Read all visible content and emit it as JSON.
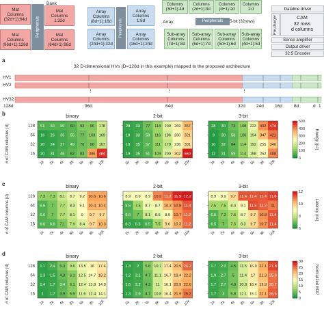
{
  "arch": {
    "bank_label": "Bank",
    "periph_label": "Peripherals",
    "mat1": "Mat\nColumns\n(32d+1):64d",
    "mat2": "Mat\nColumns\n1:32d",
    "mat3": "Mat\nColumns\n(96d+1):128d",
    "mat4": "Mat\nColumns\n(64d+1):96d",
    "arr1": "Array\nColumns\n(8d+1):16d",
    "arr2": "Array\nColumns\n1:8d",
    "arr3": "Array\nColumns\n(24d+1):32d",
    "arr4": "Array\nColumns\n(16d+1):24d",
    "sub1": "Columns\n(3d+1):4d",
    "sub2": "Columns\n(2d+1):3d",
    "sub3": "Columns\n(d+1):2d",
    "sub4": "Columns\n1:d",
    "array_word": "Array",
    "periph2": "Peripherals",
    "fivebit": "5-bit (32rows)",
    "sa_label": "Sub-array",
    "sa1": "Sub-array\nColumns\n(7d+1):8d",
    "sa2": "Sub-array\nColumns\n(6d+1):7d",
    "sa3": "Sub-array\nColumns\n(5d+1):6d",
    "sa4": "Sub-array\nColumns\n(4d+1):5d",
    "datadriver": "Dataline driver",
    "precharger": "Pre-charger",
    "cam": "CAM\n32 rows\nd columns",
    "senseamp": "Sense amplifier",
    "outdriver": "Output driver",
    "encoder": "32:5 Encoder"
  },
  "panel_a": {
    "letter": "a",
    "title": "32 D-dimensional HVs (D=128d in this example) mapped to the proposed architecture",
    "rows": [
      "HV1",
      "HV2",
      "HV32"
    ],
    "ticks": [
      "128d",
      "96d",
      "64d",
      "32d",
      "24d",
      "16d",
      "8d",
      "d",
      "1"
    ]
  },
  "chart_data": [
    {
      "letter": "b",
      "metric": "Energy",
      "unit": "Energy (pJ)",
      "type": "heatmap",
      "cbar": {
        "min": 0,
        "max": 500,
        "ticks": [
          "0",
          "100",
          "200",
          "300",
          "400",
          "500"
        ]
      },
      "ylabel": "# of CAM columns (d)",
      "rows": [
        "128",
        "64",
        "32",
        "16"
      ],
      "cols": [
        "1k",
        "2k",
        "4k",
        "8k",
        "6k",
        "8k",
        "10k"
      ],
      "maps": [
        {
          "title": "binary",
          "values": [
            [
              51,
              50,
              50,
              60,
              93,
              96,
              178
            ],
            [
              16,
              26,
              36,
              55,
              77,
              103,
              169
            ],
            [
              20,
              24,
              37,
              49,
              76,
              90,
              167
            ],
            [
              20,
              31,
              46,
              62,
              83,
              386,
              484
            ]
          ]
        },
        {
          "title": "2-bit",
          "values": [
            [
              28,
              33,
              77,
              118,
              209,
              269,
              357
            ],
            [
              18,
              33,
              58,
              116,
              186,
              260,
              321
            ],
            [
              19,
              35,
              57,
              111,
              170,
              236,
              301
            ],
            [
              19,
              35,
              51,
              109,
              200,
              302,
              560
            ]
          ]
        },
        {
          "title": "3-bit",
          "values": [
            [
              28,
              30,
              73,
              108,
              223,
              402,
              474
            ],
            [
              9,
              30,
              58,
              106,
              194,
              347,
              421
            ],
            [
              10,
              32,
              64,
              114,
              192,
              255,
              340
            ],
            [
              12,
              31,
              59,
              114,
              198,
              252,
              408
            ]
          ]
        }
      ]
    },
    {
      "letter": "c",
      "metric": "Latency",
      "unit": "Latency (ns)",
      "type": "heatmap",
      "cbar": {
        "min": 6,
        "max": 12,
        "ticks": [
          "6",
          "8",
          "10",
          "12"
        ]
      },
      "ylabel": "# of CAM columns (d)",
      "rows": [
        "128",
        "64",
        "32",
        "16"
      ],
      "cols": [
        "1k",
        "2k",
        "4k",
        "8k",
        "6k",
        "8k",
        "10k"
      ],
      "maps": [
        {
          "title": "binary",
          "values": [
            [
              7.3,
              7.3,
              8.1,
              8.7,
              9.2,
              10.6,
              10.6
            ],
            [
              6.6,
              7.0,
              7.7,
              8.3,
              9.1,
              10.4,
              10.4
            ],
            [
              6.6,
              7.0,
              7.7,
              8.1,
              9.0,
              9.7,
              9.7
            ],
            [
              6.6,
              6.6,
              7.1,
              7.9,
              8.4,
              9.7,
              10.3
            ]
          ]
        },
        {
          "title": "2-bit",
          "values": [
            [
              8.9,
              8.9,
              8.9,
              10.9,
              11.2,
              11.9,
              12.2
            ],
            [
              6.5,
              7.5,
              8.7,
              8.7,
              10.3,
              10.8,
              11.4
            ],
            [
              6.6,
              7.0,
              8.1,
              8.6,
              8.9,
              10.7,
              11.2
            ],
            [
              6.3,
              6.3,
              6.5,
              7.5,
              9.6,
              10.3,
              11.2
            ]
          ]
        },
        {
          "title": "3-bit",
          "values": [
            [
              8.9,
              8.9,
              9.7,
              11.4,
              11.4,
              11.4,
              11.6
            ],
            [
              7.5,
              7.5,
              8.4,
              9.1,
              11.5,
              11.3,
              11.0
            ],
            [
              6.6,
              7.2,
              7.6,
              8.7,
              9.7,
              10.8,
              11.4
            ],
            [
              6.5,
              7.0,
              7.5,
              8.3,
              9.7,
              10.7,
              11.4
            ]
          ]
        }
      ]
    },
    {
      "letter": "d",
      "metric": "EDP",
      "unit": "Normalized EDP",
      "type": "heatmap",
      "cbar": {
        "min": 0,
        "max": 30,
        "ticks": [
          "0",
          "5",
          "10",
          "15",
          "20",
          "25",
          "30"
        ]
      },
      "ylabel": "# of CAM columns (d)",
      "rows": [
        "128",
        "64",
        "32",
        "16"
      ],
      "cols": [
        "1k",
        "2k",
        "4k",
        "8k",
        "6k",
        "8k",
        "10k"
      ],
      "maps": [
        {
          "title": "binary",
          "values": [
            [
              1.1,
              2.4,
              5.3,
              9.6,
              13.5,
              16.0,
              17.4
            ],
            [
              1.3,
              1.5,
              4.3,
              6.1,
              12.5,
              14.7,
              18.2
            ],
            [
              1.4,
              1.7,
              3.4,
              6.1,
              12.4,
              13.8,
              14.9
            ],
            [
              1.0,
              1.7,
              3.9,
              5.9,
              11.6,
              12.4,
              14.1
            ]
          ]
        },
        {
          "title": "2-bit",
          "values": [
            [
              1.3,
              2.0,
              5.8,
              10.7,
              17.4,
              20.9,
              26.2
            ],
            [
              1.2,
              2.1,
              4.7,
              11.1,
              16.7,
              19.4,
              22.2
            ],
            [
              1.6,
              2.2,
              4.3,
              11.0,
              16.1,
              20.9,
              22.6
            ],
            [
              1.3,
              2.9,
              4.7,
              10.8,
              16.4,
              21.9,
              25.2
            ]
          ]
        },
        {
          "title": "3-bit",
          "values": [
            [
              1.7,
              2.2,
              4.5,
              11.5,
              16.9,
              22.1,
              27.8
            ],
            [
              1.9,
              2.7,
              5.0,
              11.4,
              17.0,
              21.3,
              25.6
            ],
            [
              1.7,
              2.7,
              4.9,
              10.9,
              16.4,
              19.9,
              25.7
            ],
            [
              1.7,
              3.0,
              5.8,
              12.1,
              15.1,
              22.1,
              26.6
            ]
          ]
        }
      ]
    }
  ],
  "colors": {
    "low": "#1a9641",
    "mid": "#ffffbf",
    "high": "#d7191c"
  }
}
